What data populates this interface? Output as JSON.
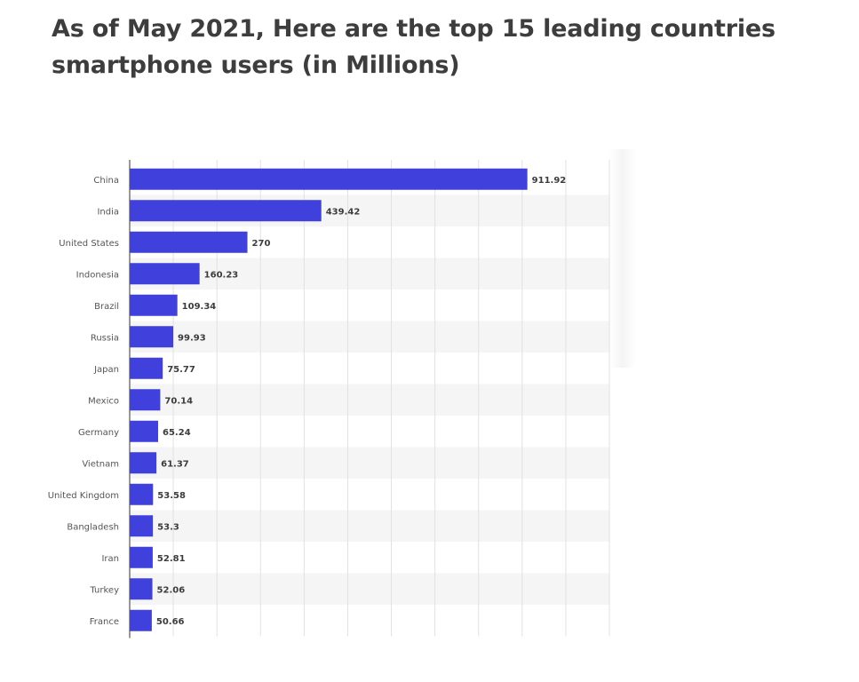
{
  "page": {
    "title": "As of May 2021, Here are the top 15 leading countries smartphone users (in Millions)"
  },
  "colors": {
    "bar": "#4040dd",
    "grid": "#e1e1e1",
    "band": "#f5f5f5",
    "axis": "#555555",
    "label": "#555555",
    "value_label": "#3c3c3c",
    "title": "#3d3d3d"
  },
  "chart_data": {
    "type": "bar",
    "orientation": "horizontal",
    "title": "As of May 2021, Here are the top 15 leading countries smartphone users (in Millions)",
    "xlabel": "",
    "ylabel": "",
    "xlim": [
      0,
      1100
    ],
    "grid": true,
    "legend": "none",
    "categories": [
      "China",
      "India",
      "United States",
      "Indonesia",
      "Brazil",
      "Russia",
      "Japan",
      "Mexico",
      "Germany",
      "Vietnam",
      "United Kingdom",
      "Bangladesh",
      "Iran",
      "Turkey",
      "France"
    ],
    "values": [
      911.92,
      439.42,
      270,
      160.23,
      109.34,
      99.93,
      75.77,
      70.14,
      65.24,
      61.37,
      53.58,
      53.3,
      52.81,
      52.06,
      50.66
    ],
    "value_labels": [
      "911.92",
      "439.42",
      "270",
      "160.23",
      "109.34",
      "99.93",
      "75.77",
      "70.14",
      "65.24",
      "61.37",
      "53.58",
      "53.3",
      "52.81",
      "52.06",
      "50.66"
    ]
  }
}
